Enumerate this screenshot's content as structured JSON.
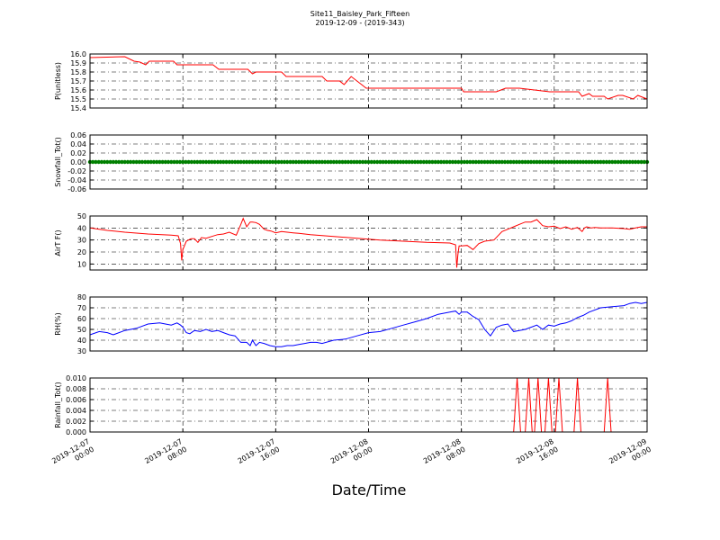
{
  "chart_data": {
    "title": "Site11_Baisley_Park_Fifteen",
    "subtitle": "2019-12-09 - (2019-343)",
    "xlabel": "Date/Time",
    "x_ticks": [
      "2019-12-07\n00:00",
      "2019-12-07\n08:00",
      "2019-12-07\n16:00",
      "2019-12-08\n00:00",
      "2019-12-08\n08:00",
      "2019-12-08\n16:00",
      "2019-12-09\n00:00"
    ],
    "x_range_hours": [
      0,
      48
    ],
    "grid": true,
    "panels": [
      {
        "type": "line",
        "ylabel": "P(unitless)",
        "ylim": [
          15.4,
          16.0
        ],
        "yticks": [
          "15.4",
          "15.5",
          "15.6",
          "15.7",
          "15.8",
          "15.9",
          "16.0"
        ],
        "color": "#ff0000",
        "x": [
          0,
          3.0,
          3.8,
          4.3,
          4.8,
          5.1,
          5.4,
          6.0,
          7.2,
          7.5,
          10.6,
          11.1,
          13.6,
          14.0,
          14.3,
          16.5,
          16.9,
          20.0,
          20.4,
          21.5,
          21.9,
          22.3,
          22.5,
          23.4,
          23.8,
          32.0,
          32.2,
          34.6,
          35.0,
          35.8,
          37.0,
          39.6,
          40.1,
          40.3,
          42.1,
          42.4,
          43.0,
          43.3,
          44.3,
          44.6,
          45.5,
          45.9,
          46.8,
          47.2,
          48.0
        ],
        "values": [
          15.96,
          15.97,
          15.92,
          15.91,
          15.88,
          15.92,
          15.92,
          15.92,
          15.92,
          15.88,
          15.88,
          15.83,
          15.83,
          15.78,
          15.8,
          15.8,
          15.75,
          15.75,
          15.7,
          15.7,
          15.66,
          15.72,
          15.75,
          15.66,
          15.62,
          15.62,
          15.58,
          15.58,
          15.58,
          15.62,
          15.62,
          15.58,
          15.58,
          15.58,
          15.58,
          15.53,
          15.56,
          15.53,
          15.53,
          15.5,
          15.54,
          15.54,
          15.5,
          15.54,
          15.5
        ]
      },
      {
        "type": "scatter",
        "ylabel": "Snowfall_Tot()",
        "ylim": [
          -0.06,
          0.06
        ],
        "yticks": [
          "-0.06",
          "-0.04",
          "-0.02",
          "0.00",
          "0.02",
          "0.04",
          "0.06"
        ],
        "color": "#008000",
        "constant_value": 0.0,
        "point_count": 193
      },
      {
        "type": "line",
        "ylabel": "AirT F()",
        "ylim": [
          5,
          50
        ],
        "yticks": [
          "10",
          "20",
          "30",
          "40",
          "50"
        ],
        "color": "#ff0000",
        "x": [
          0,
          1.5,
          3.0,
          5.0,
          7.0,
          7.6,
          7.8,
          7.9,
          8.0,
          8.3,
          8.7,
          9.0,
          9.3,
          9.6,
          10.0,
          10.5,
          11.0,
          11.5,
          12.0,
          12.6,
          13.0,
          13.2,
          13.5,
          13.8,
          14.0,
          14.3,
          14.6,
          15.0,
          15.3,
          15.6,
          16.0,
          16.5,
          17.0,
          17.5,
          18.0,
          19.0,
          21.0,
          23.0,
          25.0,
          27.0,
          29.0,
          31.0,
          31.5,
          31.6,
          31.7,
          31.8,
          32.0,
          32.5,
          33.0,
          33.5,
          34.0,
          34.8,
          35.5,
          36.0,
          36.5,
          37.0,
          37.5,
          38.0,
          38.5,
          39.0,
          39.5,
          40.0,
          40.5,
          41.0,
          41.5,
          42.0,
          42.4,
          42.6,
          42.8,
          43.2,
          43.5,
          44.0,
          45.0,
          46.0,
          46.5,
          47.0,
          47.5,
          48.0
        ],
        "values": [
          40,
          38,
          36.5,
          35,
          34,
          33.5,
          27,
          13,
          22,
          29,
          31,
          31,
          28,
          32,
          31.5,
          33,
          34.5,
          35,
          36.5,
          34,
          43,
          48,
          41,
          45,
          45,
          44.5,
          43,
          39,
          38,
          37.5,
          36,
          37,
          36.5,
          36,
          35.5,
          34.5,
          33,
          31.5,
          30,
          29,
          28,
          27.5,
          26,
          7,
          18,
          25,
          25,
          25.5,
          22,
          27,
          29,
          30,
          37,
          39,
          41,
          43,
          45,
          45,
          47,
          42,
          41,
          41.5,
          39.5,
          41,
          39,
          40.5,
          37,
          40,
          41,
          40,
          40.5,
          40,
          40,
          39.5,
          39,
          40,
          41,
          41
        ]
      },
      {
        "type": "line",
        "ylabel": "RH(%)",
        "ylim": [
          30,
          80
        ],
        "yticks": [
          "30",
          "40",
          "50",
          "60",
          "70",
          "80"
        ],
        "color": "#0000ff",
        "x": [
          0,
          0.8,
          1.5,
          2.0,
          3.0,
          4.0,
          5.0,
          6.0,
          6.5,
          7.0,
          7.5,
          7.8,
          8.0,
          8.3,
          8.6,
          9.0,
          9.5,
          10.0,
          10.5,
          11.0,
          11.5,
          12.0,
          12.5,
          13.0,
          13.5,
          13.8,
          14.0,
          14.3,
          14.6,
          15.0,
          15.5,
          16.0,
          16.5,
          17.0,
          17.5,
          18.0,
          18.5,
          19.0,
          19.5,
          20.0,
          21.0,
          22.0,
          23.0,
          24.0,
          25.0,
          26.0,
          27.0,
          28.0,
          29.0,
          30.0,
          31.0,
          31.5,
          31.8,
          32.0,
          32.5,
          33.0,
          33.5,
          34.0,
          34.5,
          35.0,
          35.5,
          36.0,
          36.5,
          37.0,
          37.5,
          38.0,
          38.5,
          39.0,
          39.5,
          40.0,
          40.5,
          41.0,
          41.5,
          42.0,
          42.5,
          43.0,
          44.0,
          45.0,
          46.0,
          46.5,
          47.0,
          47.5,
          48.0
        ],
        "values": [
          45,
          48,
          47,
          45,
          49,
          51,
          55,
          56,
          55,
          54,
          56,
          54,
          52,
          47,
          46,
          49,
          48,
          50,
          48,
          49,
          47,
          45,
          44,
          38,
          38,
          35,
          40,
          35,
          38,
          37,
          35,
          34,
          34,
          35,
          35,
          36,
          37,
          38,
          38,
          37,
          40,
          41,
          44,
          47,
          48,
          51,
          54,
          57,
          60,
          64,
          66,
          67,
          64,
          66,
          66,
          62,
          59,
          50,
          44,
          52,
          54,
          55,
          48,
          49,
          50,
          52,
          54,
          50,
          54,
          53,
          55,
          56,
          58,
          61,
          63,
          66,
          70,
          71,
          72,
          74,
          75,
          74,
          75
        ]
      },
      {
        "type": "line",
        "ylabel": "Rainfall_Tot()",
        "ylim": [
          0,
          0.01
        ],
        "yticks": [
          "0.000",
          "0.002",
          "0.004",
          "0.006",
          "0.008",
          "0.010"
        ],
        "color": "#ff0000",
        "x": [
          0,
          36.5,
          36.8,
          37.1,
          37.5,
          37.8,
          38.1,
          38.3,
          38.6,
          38.9,
          39.2,
          39.5,
          39.8,
          40.1,
          40.4,
          40.7,
          41.0,
          41.7,
          42.0,
          42.3,
          44.3,
          44.6,
          44.9,
          48.0
        ],
        "values": [
          0,
          0,
          0.01,
          0,
          0,
          0.01,
          0,
          0,
          0.01,
          0,
          0,
          0.01,
          0,
          0,
          0.01,
          0,
          0,
          0,
          0.01,
          0,
          0,
          0.01,
          0,
          0
        ]
      }
    ]
  }
}
